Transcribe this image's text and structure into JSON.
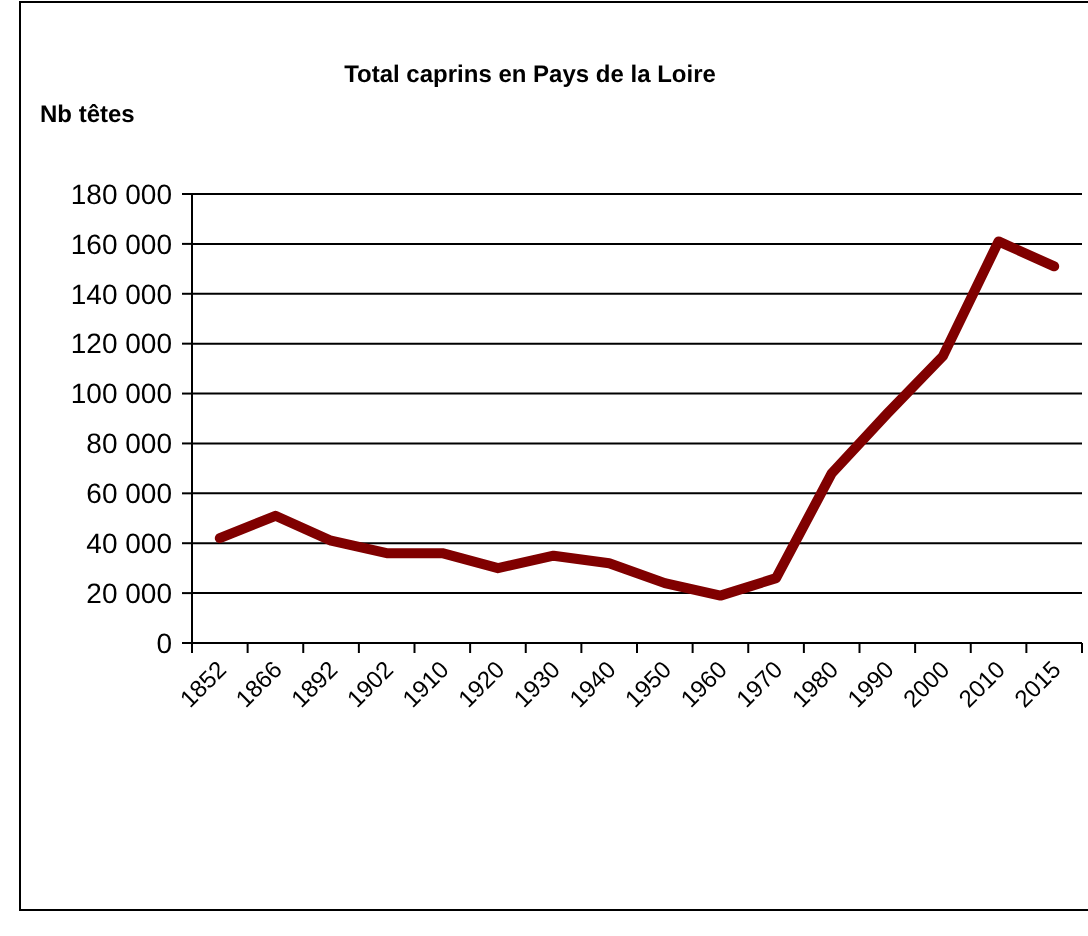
{
  "chart_data": {
    "type": "line",
    "title": "Total caprins en Pays de la Loire",
    "ylabel": "Nb têtes",
    "categories": [
      "1852",
      "1866",
      "1892",
      "1902",
      "1910",
      "1920",
      "1930",
      "1940",
      "1950",
      "1960",
      "1970",
      "1980",
      "1990",
      "2000",
      "2010",
      "2015"
    ],
    "series": [
      {
        "color": "#800000",
        "values": [
          42000,
          51000,
          41000,
          36000,
          36000,
          30000,
          35000,
          32000,
          24000,
          19000,
          26000,
          68000,
          92000,
          115000,
          161000,
          151000
        ]
      }
    ],
    "ylim": [
      0,
      180000
    ],
    "yticks": [
      {
        "value": 0,
        "label": "0"
      },
      {
        "value": 20000,
        "label": "20 000"
      },
      {
        "value": 40000,
        "label": "40 000"
      },
      {
        "value": 60000,
        "label": "60 000"
      },
      {
        "value": 80000,
        "label": "80 000"
      },
      {
        "value": 100000,
        "label": "100 000"
      },
      {
        "value": 120000,
        "label": "120 000"
      },
      {
        "value": 140000,
        "label": "140 000"
      },
      {
        "value": 160000,
        "label": "160 000"
      },
      {
        "value": 180000,
        "label": "180 000"
      }
    ],
    "grid": "y",
    "marker": "none",
    "line_style": "solid"
  }
}
